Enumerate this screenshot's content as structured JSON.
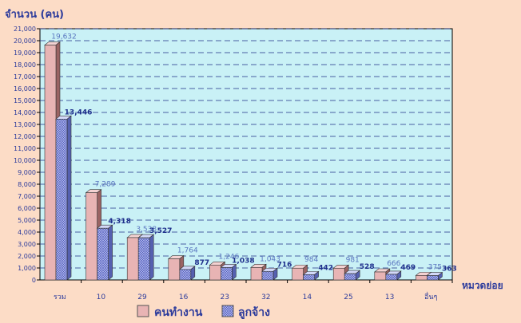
{
  "chart_data": {
    "type": "bar",
    "ylabel": "จำนวน (คน)",
    "xlabel": "หมวดย่อย",
    "categories": [
      "รวม",
      "10",
      "29",
      "16",
      "23",
      "32",
      "14",
      "25",
      "13",
      "อื่นๆ"
    ],
    "ylim": [
      0,
      21000
    ],
    "ytick_step": 1000,
    "grid": true,
    "legend_position": "bottom-center",
    "series": [
      {
        "name": "คนทำงาน",
        "color": "#e8b4b4",
        "pattern": "solid",
        "values": [
          19632,
          7289,
          3538,
          1764,
          1246,
          1043,
          984,
          981,
          666,
          375
        ]
      },
      {
        "name": "ลูกจ้าง",
        "color": "#b7bdf0",
        "pattern": "hatched",
        "values": [
          13446,
          4318,
          3527,
          877,
          1038,
          716,
          442,
          528,
          469,
          363
        ]
      }
    ]
  },
  "colors": {
    "background": "#fcdcc6",
    "plot_area": "#c9f1f6",
    "axis_text": "#2c3b9c",
    "label_workers": "#5a76c0",
    "label_employees": "#1e2f8c"
  }
}
